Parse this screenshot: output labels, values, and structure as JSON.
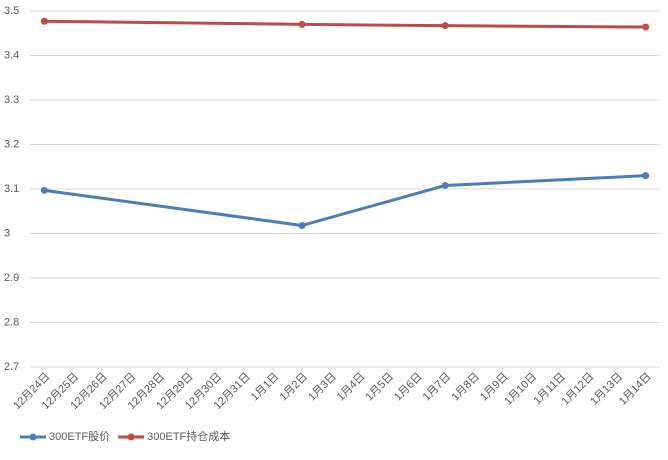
{
  "chart_data": {
    "type": "line",
    "categories": [
      "12月24日",
      "12月25日",
      "12月26日",
      "12月27日",
      "12月28日",
      "12月29日",
      "12月30日",
      "12月31日",
      "1月1日",
      "1月2日",
      "1月3日",
      "1月4日",
      "1月5日",
      "1月6日",
      "1月7日",
      "1月8日",
      "1月9日",
      "1月10日",
      "1月11日",
      "1月12日",
      "1月13日",
      "1月14日"
    ],
    "series": [
      {
        "name": "300ETF股价",
        "color": "#4a7ebb",
        "values": [
          3.097,
          null,
          null,
          null,
          null,
          null,
          null,
          null,
          null,
          3.018,
          null,
          null,
          null,
          null,
          3.108,
          null,
          null,
          null,
          null,
          null,
          null,
          3.13
        ]
      },
      {
        "name": "300ETF持仓成本",
        "color": "#be4b48",
        "values": [
          3.477,
          null,
          null,
          null,
          null,
          null,
          null,
          null,
          null,
          3.47,
          null,
          null,
          null,
          null,
          3.467,
          null,
          null,
          null,
          null,
          null,
          null,
          3.464
        ]
      }
    ],
    "connect_gaps": true,
    "ylim": [
      2.7,
      3.5
    ],
    "yticks": [
      2.7,
      2.8,
      2.9,
      3,
      3.1,
      3.2,
      3.3,
      3.4,
      3.5
    ],
    "grid": true,
    "legend": "bottom-left"
  }
}
